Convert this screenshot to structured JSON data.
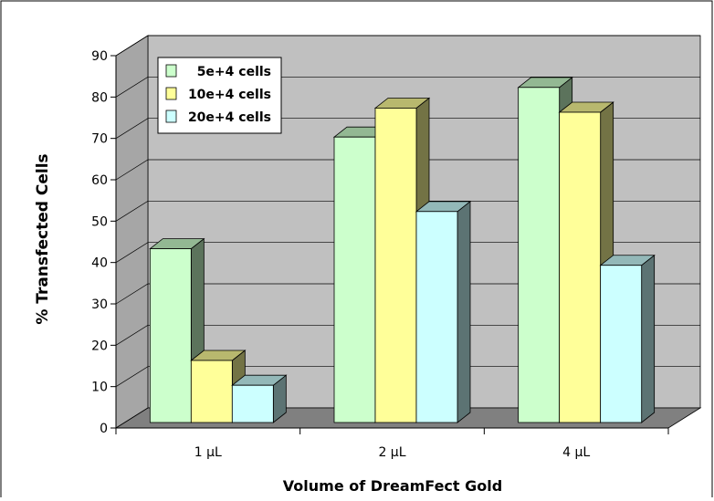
{
  "chart_data": {
    "type": "bar",
    "title": "",
    "xlabel": "Volume of DreamFect Gold",
    "ylabel": "% Transfected Cells",
    "categories": [
      "1 µL",
      "2 µL",
      "4 µL"
    ],
    "series": [
      {
        "name": "5e+4 cells",
        "values": [
          42,
          69,
          81
        ],
        "color": "#ccffcc"
      },
      {
        "name": "10e+4 cells",
        "values": [
          15,
          76,
          75
        ],
        "color": "#ffff99"
      },
      {
        "name": "20e+4 cells",
        "values": [
          9,
          51,
          38
        ],
        "color": "#ccffff"
      }
    ],
    "ylim": [
      0,
      90
    ],
    "yticks": [
      0,
      10,
      20,
      30,
      40,
      50,
      60,
      70,
      80,
      90
    ],
    "grid": true,
    "legend_position": "top-left",
    "style": "3d-clustered-column",
    "wall_color": "#c0c0c0",
    "floor_color": "#808080"
  }
}
